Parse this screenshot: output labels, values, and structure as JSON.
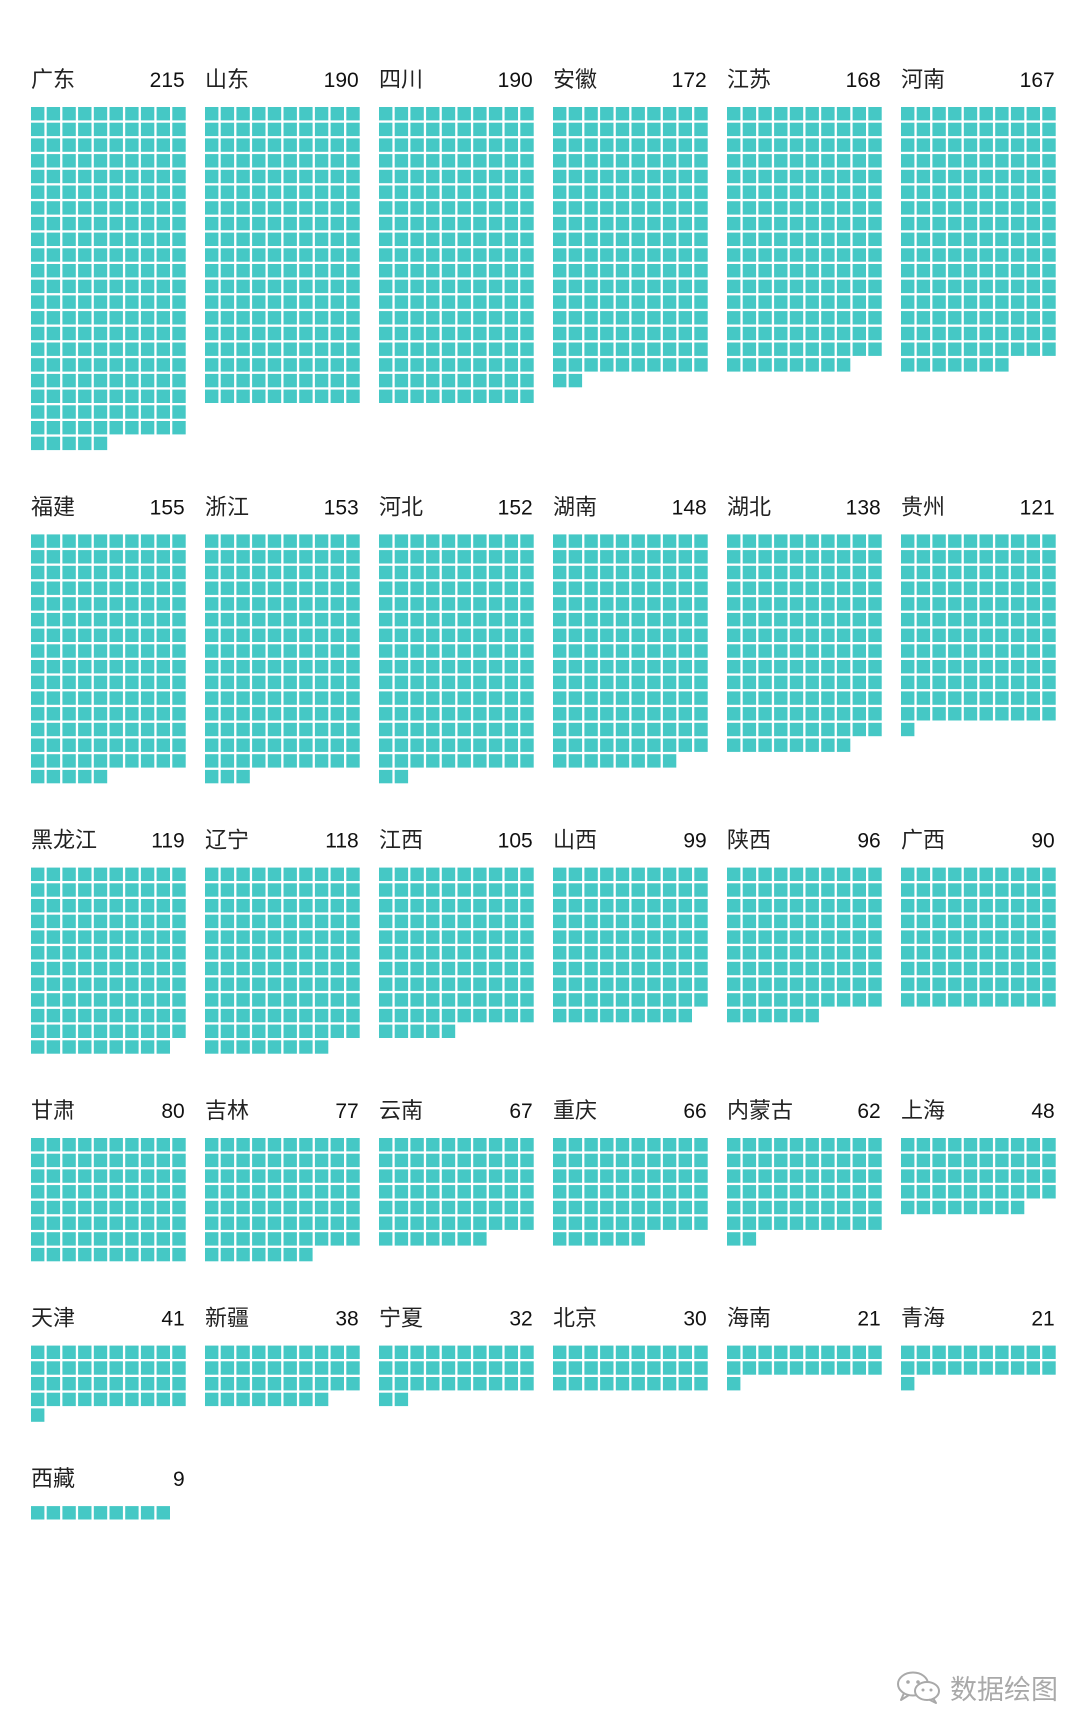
{
  "colors": {
    "square": "#45C8C5",
    "background": "#FFFFFF",
    "text": "#222222",
    "watermark": "#A9A9A9"
  },
  "chart_data": {
    "type": "waffle",
    "title": "",
    "unit_per_square": 1,
    "columns_per_panel": 10,
    "panels_per_row": 6,
    "categories": [
      "广东",
      "山东",
      "四川",
      "安徽",
      "江苏",
      "河南",
      "福建",
      "浙江",
      "河北",
      "湖南",
      "湖北",
      "贵州",
      "黑龙江",
      "辽宁",
      "江西",
      "山西",
      "陕西",
      "广西",
      "甘肃",
      "吉林",
      "云南",
      "重庆",
      "内蒙古",
      "上海",
      "天津",
      "新疆",
      "宁夏",
      "北京",
      "海南",
      "青海",
      "西藏"
    ],
    "values": [
      215,
      190,
      190,
      172,
      168,
      167,
      155,
      153,
      152,
      148,
      138,
      121,
      119,
      118,
      105,
      99,
      96,
      90,
      80,
      77,
      67,
      66,
      62,
      48,
      41,
      38,
      32,
      30,
      21,
      21,
      9
    ]
  },
  "watermark": {
    "text": "数据绘图",
    "icon": "wechat-icon"
  }
}
